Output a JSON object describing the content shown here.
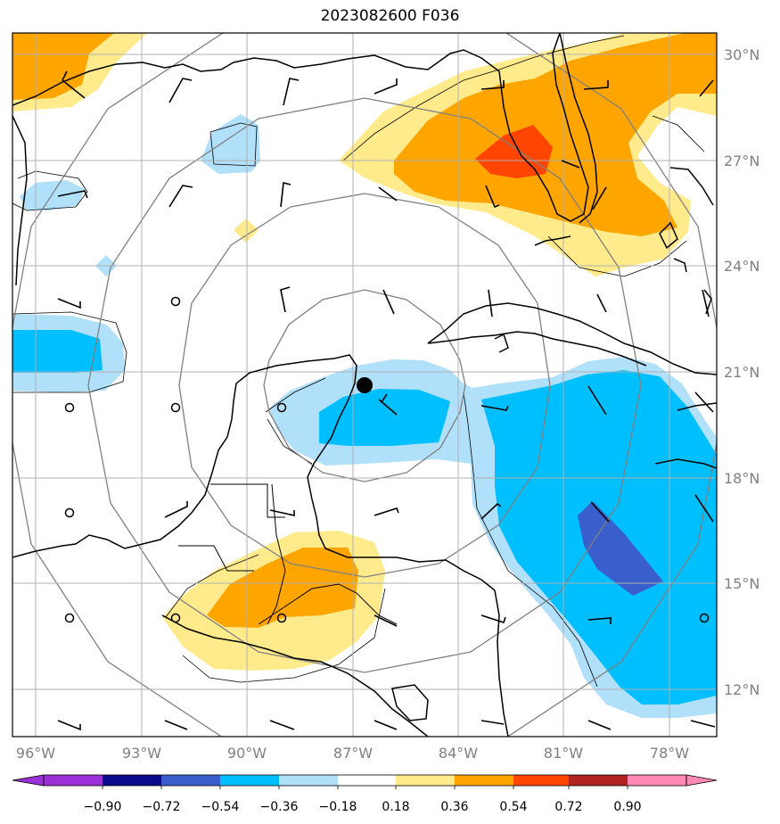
{
  "title": "2023082600 F036",
  "lon_labels": [
    "96°W",
    "93°W",
    "90°W",
    "87°W",
    "84°W",
    "81°W",
    "78°W"
  ],
  "lat_labels": [
    "30°N",
    "27°N",
    "24°N",
    "21°N",
    "18°N",
    "15°N",
    "12°N"
  ],
  "colorbar": {
    "ticks": [
      "−0.90",
      "−0.72",
      "−0.54",
      "−0.36",
      "−0.18",
      "0.18",
      "0.36",
      "0.54",
      "0.72",
      "0.90"
    ],
    "colors": [
      "#9b30d9",
      "#0a0a8c",
      "#3a5fcd",
      "#00bfff",
      "#b0e0fa",
      "#ffffff",
      "#ffeb8c",
      "#ffa500",
      "#ff4500",
      "#b22222",
      "#ff88b4"
    ]
  },
  "storm_center": {
    "lon": -86.7,
    "lat": 20.4
  }
}
